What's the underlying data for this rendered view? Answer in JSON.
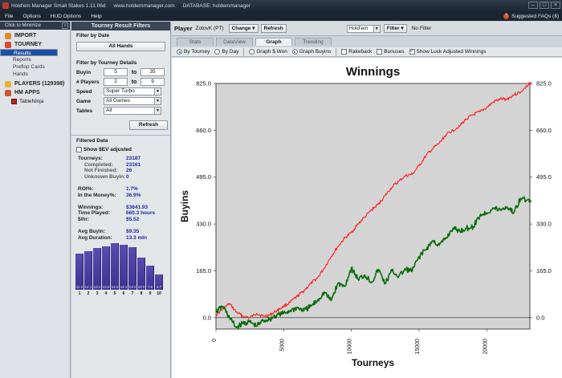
{
  "window": {
    "title": "Hold'em Manager Small Stakes 1.11.06d",
    "site": "www.holdemmanager.com",
    "database": "DATABASE: holdemmanager"
  },
  "menu": {
    "items": [
      "File",
      "Options",
      "HUD Options",
      "Help"
    ],
    "faq": "Suggested FAQs (8)"
  },
  "nav": {
    "minimize": "Click to Minimize",
    "import": "IMPORT",
    "tourney": "TOURNEY",
    "tourney_items": [
      "Results",
      "Reports",
      "Preflop Cards",
      "Hands"
    ],
    "players": "PLAYERS (129398)",
    "hm_apps": "HM APPS",
    "app_item": "TableNinja"
  },
  "filters": {
    "title": "Tourney Result Filters",
    "by_date": "Filter by Date",
    "all_hands": "All Hands",
    "by_details": "Filter by Tourney Details",
    "buyin_label": "Buyin",
    "buyin_min": "5",
    "buyin_to": "to",
    "buyin_max": "35",
    "players_label": "# Players",
    "players_min": "2",
    "players_to": "to",
    "players_max": "9",
    "speed_label": "Speed",
    "speed_value": "Super Turbo",
    "game_label": "Game",
    "game_value": "All Games",
    "tables_label": "Tables",
    "tables_value": "All",
    "refresh": "Refresh",
    "filtered_data": "Filtered Data",
    "show_sev": "Show $EV adjusted"
  },
  "stats": [
    {
      "k": "Tourneys:",
      "v": "23187",
      "indent": false
    },
    {
      "k": "Completed:",
      "v": "23161",
      "indent": true
    },
    {
      "k": "Not Finished:",
      "v": "26",
      "indent": true
    },
    {
      "k": "Unknown Buyin:",
      "v": "0",
      "indent": true
    },
    {
      "k": "",
      "v": "",
      "indent": false
    },
    {
      "k": "ROI%:",
      "v": "1.7%",
      "indent": false
    },
    {
      "k": "In the Money%:",
      "v": "36.9%",
      "indent": false
    },
    {
      "k": "",
      "v": "",
      "indent": false
    },
    {
      "k": "Winnings:",
      "v": "$3641.93",
      "indent": false
    },
    {
      "k": "Time Played:",
      "v": "660.3 hours",
      "indent": false
    },
    {
      "k": "$/hr:",
      "v": "$5.52",
      "indent": false
    },
    {
      "k": "",
      "v": "",
      "indent": false
    },
    {
      "k": "Avg Buyin:",
      "v": "$9.35",
      "indent": false
    },
    {
      "k": "Avg Duration:",
      "v": "13.3 min",
      "indent": false
    }
  ],
  "histogram": {
    "places": [
      "1",
      "2",
      "3",
      "4",
      "5",
      "6",
      "7",
      "8",
      "9",
      "10"
    ],
    "values": [
      11.2,
      12.1,
      13.1,
      13.5,
      14.5,
      14.1,
      13.2,
      10.0,
      7.6,
      4.7
    ],
    "labels": [
      "11.2",
      "12.1",
      "13.1",
      "13.5",
      "14.5",
      "14.1",
      "13.2",
      "10.0",
      "7.6",
      "4.7"
    ]
  },
  "topbar": {
    "player_label": "Player",
    "player_value": "ZotovK (PT)",
    "change": "Change",
    "refresh": "Refresh",
    "game": "Hold'em",
    "filter": "Filter",
    "no_filter": "No Filter"
  },
  "tabs": [
    "Stats",
    "DataView",
    "Graph",
    "Trending"
  ],
  "active_tab": "Graph",
  "options": {
    "by_tourney": "By Tourney",
    "by_day": "By Day",
    "graph_won": "Graph $ Won",
    "graph_buyins": "Graph Buyins",
    "rakeback": "Rakeback",
    "bonuses": "Bonuses",
    "show_luck": "Show Luck Adjusted Winnings"
  },
  "colors": {
    "actual": "#ff2020",
    "luck": "#0a6b0a",
    "hist_bar": "#3e3290",
    "selected_nav": "#1e4fa8"
  },
  "chart_data": {
    "type": "line",
    "title": "Winnings",
    "xlabel": "Tourneys",
    "ylabel": "Buyins",
    "xlim": [
      0,
      23187
    ],
    "ylim": [
      -40,
      825
    ],
    "yticks": [
      0,
      165,
      330,
      495,
      660,
      825
    ],
    "ytick_labels": [
      "0.0",
      "165.0",
      "330.0",
      "495.0",
      "660.0",
      "825.0"
    ],
    "xticks": [
      0,
      5000,
      10000,
      15000,
      20000
    ],
    "xtick_labels": [
      "0",
      "5000",
      "10000",
      "15000",
      "20000"
    ],
    "grid": false,
    "series": [
      {
        "color": "#ff2020",
        "x": [
          0,
          500,
          1000,
          1500,
          2000,
          2500,
          3000,
          3500,
          4000,
          4500,
          5000,
          5500,
          6000,
          6500,
          7000,
          7500,
          8000,
          8500,
          9000,
          9500,
          10000,
          10500,
          11000,
          11500,
          12000,
          12500,
          13000,
          13500,
          14000,
          14500,
          15000,
          15500,
          16000,
          16500,
          17000,
          17500,
          18000,
          18500,
          19000,
          19500,
          20000,
          20500,
          21000,
          21500,
          22000,
          22500,
          23187
        ],
        "y": [
          10,
          30,
          50,
          20,
          5,
          0,
          15,
          5,
          10,
          25,
          40,
          55,
          75,
          95,
          120,
          140,
          175,
          215,
          250,
          280,
          300,
          330,
          355,
          380,
          400,
          430,
          460,
          480,
          500,
          505,
          535,
          570,
          595,
          615,
          645,
          660,
          675,
          700,
          715,
          725,
          740,
          760,
          770,
          770,
          785,
          795,
          825
        ]
      },
      {
        "color": "#0a6b0a",
        "x": [
          0,
          500,
          1000,
          1500,
          2000,
          2500,
          3000,
          3500,
          4000,
          4500,
          5000,
          5500,
          6000,
          6500,
          7000,
          7500,
          8000,
          8500,
          9000,
          9500,
          10000,
          10500,
          11000,
          11500,
          12000,
          12500,
          13000,
          13500,
          14000,
          14500,
          15000,
          15500,
          16000,
          16500,
          17000,
          17500,
          18000,
          18500,
          19000,
          19500,
          20000,
          20500,
          21000,
          21500,
          22000,
          22500,
          23187
        ],
        "y": [
          20,
          40,
          0,
          -35,
          -20,
          -15,
          -30,
          -10,
          -5,
          10,
          15,
          25,
          35,
          25,
          40,
          60,
          90,
          60,
          120,
          110,
          175,
          135,
          150,
          125,
          170,
          120,
          165,
          145,
          170,
          165,
          215,
          240,
          270,
          255,
          280,
          315,
          305,
          315,
          320,
          360,
          370,
          385,
          380,
          390,
          370,
          420,
          410
        ]
      }
    ]
  }
}
